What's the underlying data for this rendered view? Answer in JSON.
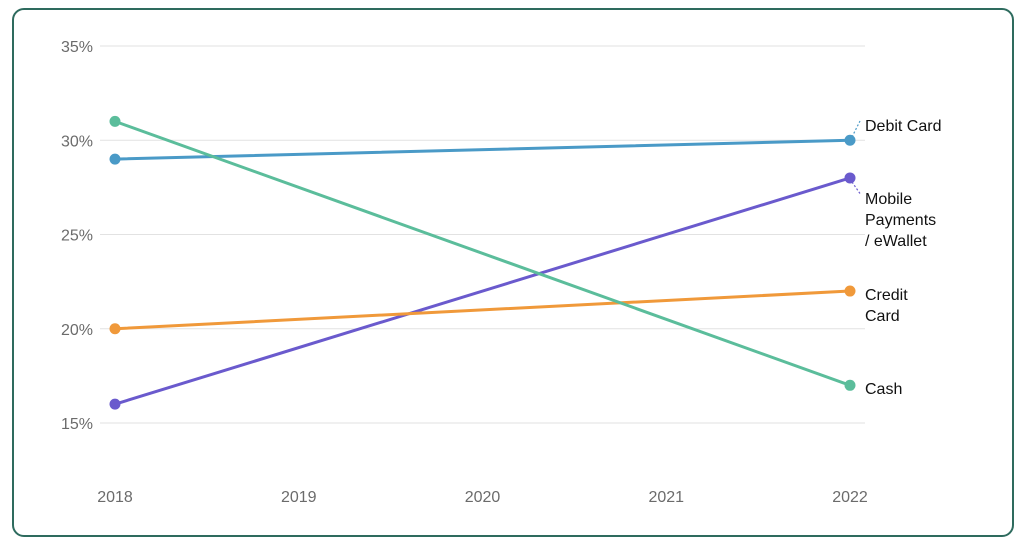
{
  "chart_data": {
    "type": "line",
    "title": "",
    "xlabel": "",
    "ylabel": "",
    "x": [
      2018,
      2019,
      2020,
      2021,
      2022
    ],
    "x_tick_labels": [
      "2018",
      "2019",
      "2020",
      "2021",
      "2022"
    ],
    "y_tick_labels": [
      "35%",
      "30%",
      "25%",
      "20%",
      "15%"
    ],
    "y_ticks": [
      35,
      30,
      25,
      20,
      15
    ],
    "ylim": [
      12.5,
      35
    ],
    "grid": "horizontal",
    "legend": "end-of-line labels",
    "series": [
      {
        "name": "Debit Card",
        "label_lines": [
          "Debit Card"
        ],
        "color": "#4a9ac7",
        "points": [
          {
            "x": 2018,
            "y": 29
          },
          {
            "x": 2022,
            "y": 30
          }
        ]
      },
      {
        "name": "Mobile Payments / eWallet",
        "label_lines": [
          "Mobile",
          "Payments",
          "/ eWallet"
        ],
        "color": "#6a5acd",
        "points": [
          {
            "x": 2018,
            "y": 16
          },
          {
            "x": 2022,
            "y": 28
          }
        ]
      },
      {
        "name": "Credit Card",
        "label_lines": [
          "Credit",
          "Card"
        ],
        "color": "#f0993a",
        "points": [
          {
            "x": 2018,
            "y": 20
          },
          {
            "x": 2022,
            "y": 22
          }
        ]
      },
      {
        "name": "Cash",
        "label_lines": [
          "Cash"
        ],
        "color": "#5bbd9b",
        "points": [
          {
            "x": 2018,
            "y": 31
          },
          {
            "x": 2022,
            "y": 17
          }
        ]
      }
    ]
  }
}
